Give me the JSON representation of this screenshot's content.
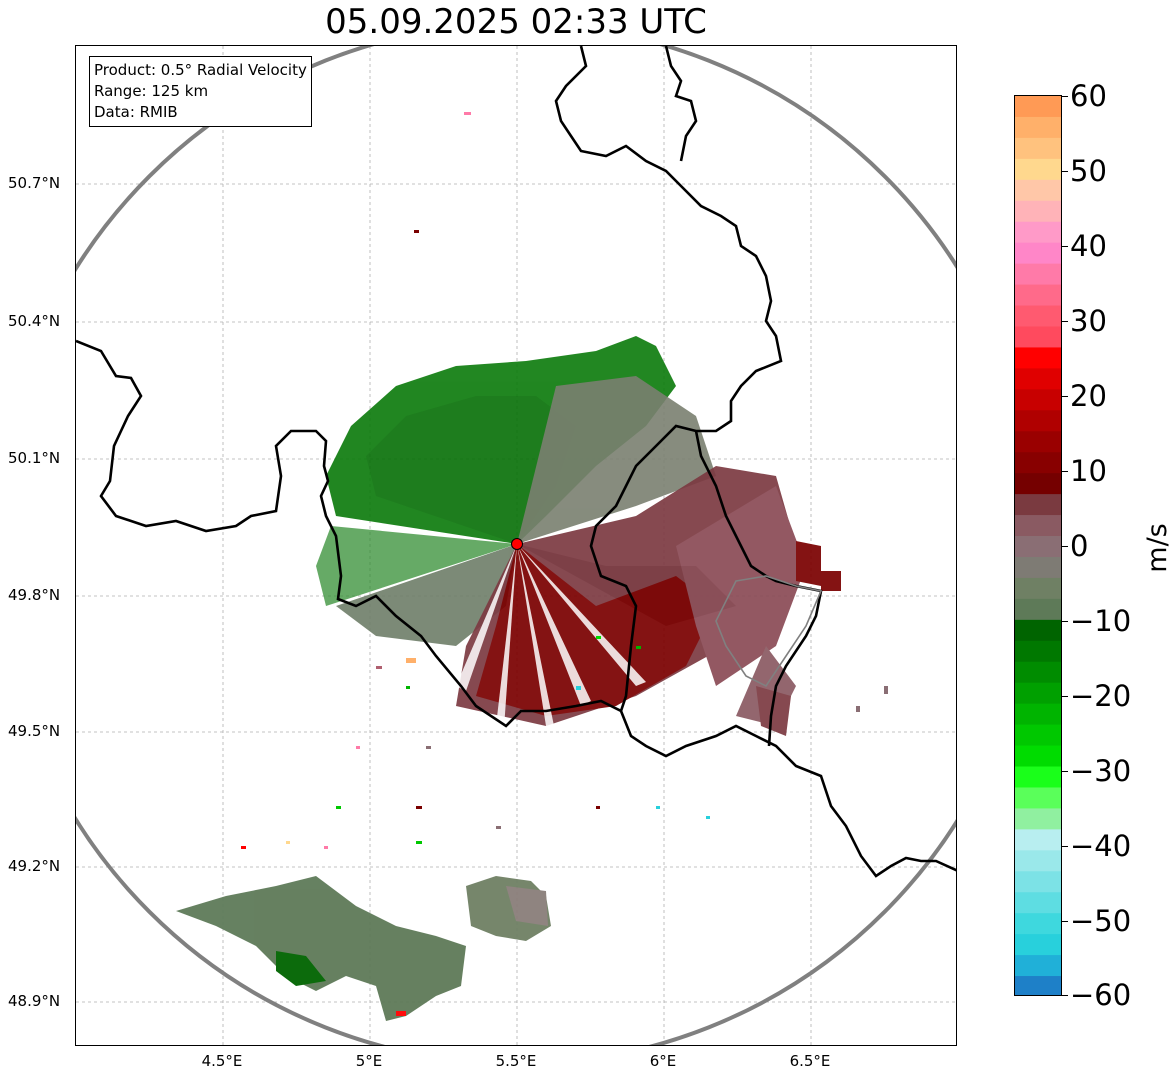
{
  "title": "05.09.2025 02:33 UTC",
  "info_box": {
    "product": "Product: 0.5° Radial Velocity",
    "range": "Range: 125 km",
    "source": "Data: RMIB"
  },
  "y_ticks": [
    "50.7°N",
    "50.4°N",
    "50.1°N",
    "49.8°N",
    "49.5°N",
    "49.2°N",
    "48.9°N"
  ],
  "x_ticks": [
    "4.5°E",
    "5°E",
    "5.5°E",
    "6°E",
    "6.5°E"
  ],
  "colorbar": {
    "label": "m/s",
    "ticks": [
      "60",
      "50",
      "40",
      "30",
      "20",
      "10",
      "0",
      "−10",
      "−20",
      "−30",
      "−40",
      "−50",
      "−60"
    ],
    "range": [
      -60,
      60
    ],
    "colors_top_to_bottom": [
      "#ff9a55",
      "#ffb06a",
      "#ffc27e",
      "#ffd88e",
      "#ffc7a8",
      "#ffb3b8",
      "#ff9ac8",
      "#ff86c8",
      "#ff7aa8",
      "#ff6a8a",
      "#ff5a70",
      "#ff4a5e",
      "#ff0000",
      "#e00000",
      "#c80000",
      "#b00000",
      "#9a0000",
      "#880000",
      "#750000",
      "#7a3a40",
      "#8a5a62",
      "#8a6e74",
      "#7e7b74",
      "#6f8064",
      "#5e7a58",
      "#006400",
      "#007800",
      "#008c00",
      "#00a000",
      "#00b400",
      "#00c800",
      "#00dc00",
      "#1aff1a",
      "#5aff5a",
      "#90f0a0",
      "#b8eef0",
      "#9ae8ea",
      "#7ce2e6",
      "#5edde2",
      "#3ed8de",
      "#28d0dc",
      "#20b0d8",
      "#1e80c8"
    ]
  },
  "map": {
    "radar_site": {
      "lon": 5.5,
      "lat": 49.91
    },
    "colors": {
      "approaching": "#007800",
      "receding": "#7a0000",
      "near_zero": "#7a8070",
      "range_ring": "#808080",
      "border": "#000000",
      "marker": "#ff0000"
    }
  }
}
